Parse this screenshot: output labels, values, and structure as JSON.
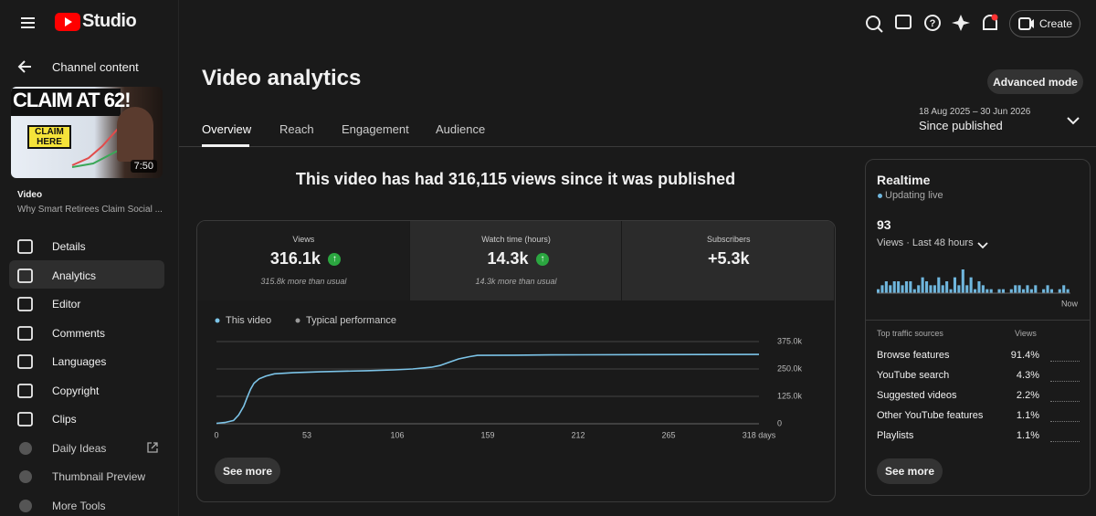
{
  "header": {
    "logo": "Studio",
    "create": "Create"
  },
  "sidebar": {
    "back": "Channel content",
    "thumbnail": {
      "headline": "CLAIM AT 62!",
      "badge": "CLAIM HERE",
      "duration": "7:50"
    },
    "video_label": "Video",
    "video_title": "Why Smart Retirees Claim Social ...",
    "nav": [
      "Details",
      "Analytics",
      "Editor",
      "Comments",
      "Languages",
      "Copyright",
      "Clips",
      "Daily Ideas",
      "Thumbnail Preview",
      "More Tools"
    ]
  },
  "main": {
    "title": "Video analytics",
    "tabs": [
      "Overview",
      "Reach",
      "Engagement",
      "Audience"
    ],
    "advanced": "Advanced mode",
    "date_range": "18 Aug 2025 – 30 Jun 2026",
    "period": "Since published",
    "headline": "This video has had 316,115 views since it was published",
    "metrics": [
      {
        "label": "Views",
        "value": "316.1k",
        "note": "315.8k more than usual"
      },
      {
        "label": "Watch time (hours)",
        "value": "14.3k",
        "note": "14.3k more than usual"
      },
      {
        "label": "Subscribers",
        "value": "+5.3k"
      }
    ],
    "see_more": "See more"
  },
  "chart_data": [
    {
      "type": "line",
      "x": [
        0,
        5,
        10,
        13,
        16,
        18,
        20,
        22,
        25,
        29,
        34,
        45,
        61,
        88,
        104,
        115,
        126,
        131,
        137,
        142,
        148,
        153,
        175,
        196,
        249,
        318
      ],
      "series": [
        {
          "name": "This video",
          "color": "#7cc4e8",
          "values": [
            2000,
            6000,
            15000,
            40000,
            80000,
            120000,
            158000,
            185000,
            205000,
            218000,
            228000,
            233000,
            237000,
            242000,
            246000,
            250000,
            258000,
            266000,
            282000,
            296000,
            306000,
            312000,
            313000,
            314000,
            315500,
            316115
          ]
        },
        {
          "name": "Typical performance",
          "color": "#9a9a9a",
          "values": [
            null,
            null,
            null,
            null,
            null,
            null,
            null,
            null,
            null,
            null,
            null,
            null,
            null,
            null,
            null,
            null,
            null,
            null,
            null,
            null,
            null,
            null,
            null,
            null,
            null,
            null
          ]
        }
      ],
      "xlim": [
        0,
        318
      ],
      "xticks": [
        0,
        53,
        106,
        159,
        212,
        265,
        {
          "value": 318,
          "label": "318 days"
        }
      ],
      "ylim": [
        0,
        375000
      ],
      "yticks": [
        0,
        {
          "value": 125000,
          "label": "125.0k"
        },
        {
          "value": 250000,
          "label": "250.0k"
        },
        {
          "value": 375000,
          "label": "375.0k"
        }
      ],
      "grid": true
    },
    {
      "type": "bar",
      "x_label": "Now",
      "color": "#6fb6dd",
      "values": [
        1,
        2,
        3,
        2,
        3,
        3,
        2,
        3,
        3,
        1,
        2,
        4,
        3,
        2,
        2,
        4,
        2,
        3,
        1,
        4,
        2,
        6,
        2,
        4,
        1,
        3,
        2,
        1,
        1,
        0,
        1,
        1,
        0,
        1,
        2,
        2,
        1,
        2,
        1,
        2,
        0,
        1,
        2,
        1,
        0,
        1,
        2,
        1
      ]
    }
  ],
  "realtime": {
    "title": "Realtime",
    "status": "Updating live",
    "count": "93",
    "period": "Views · Last 48 hours",
    "sources_header": "Top traffic sources",
    "views_header": "Views",
    "sources": [
      {
        "name": "Browse features",
        "share": "91.4%"
      },
      {
        "name": "YouTube search",
        "share": "4.3%"
      },
      {
        "name": "Suggested videos",
        "share": "2.2%"
      },
      {
        "name": "Other YouTube features",
        "share": "1.1%"
      },
      {
        "name": "Playlists",
        "share": "1.1%"
      }
    ],
    "see_more": "See more"
  }
}
